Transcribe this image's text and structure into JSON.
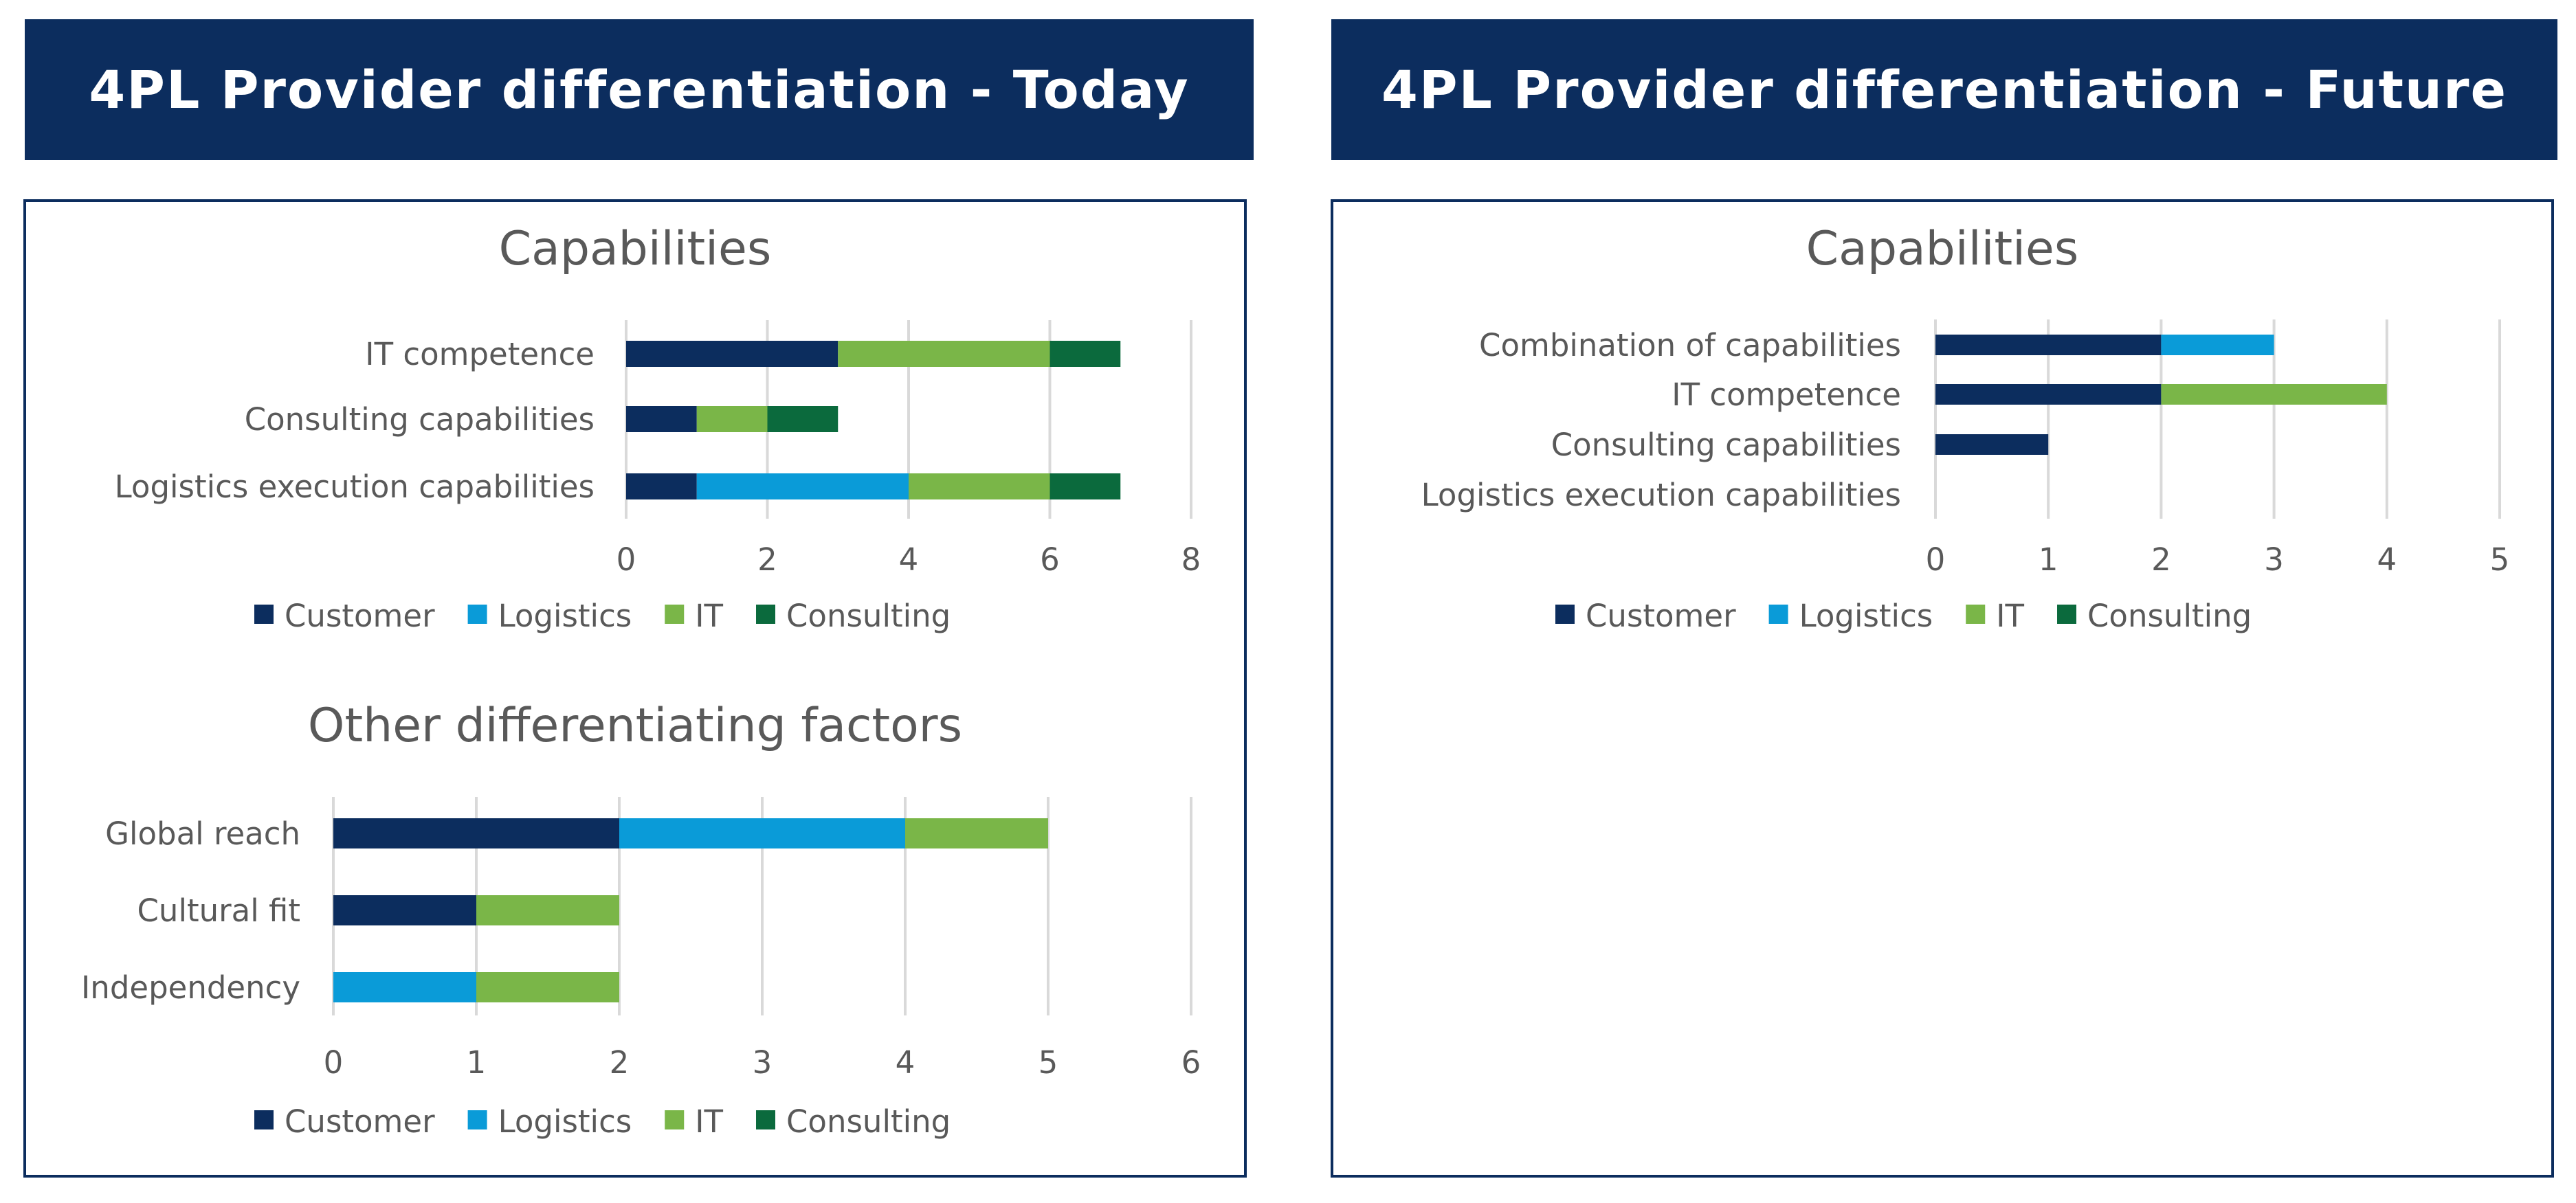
{
  "headers": {
    "today": "4PL Provider differentiation - Today",
    "future": "4PL Provider differentiation - Future"
  },
  "colors": {
    "header_bg": "#0c2d5e",
    "Customer": "#0c2d5e",
    "Logistics": "#0a9bd8",
    "IT": "#7ab648",
    "Consulting": "#0b6a3d",
    "grid": "#d9d9d9",
    "text": "#595959"
  },
  "chart_data": [
    {
      "id": "today_capabilities",
      "type": "bar",
      "orientation": "horizontal",
      "stacked": true,
      "title": "Capabilities",
      "categories": [
        "IT competence",
        "Consulting capabilities",
        "Logistics execution capabilities"
      ],
      "series": [
        {
          "name": "Customer",
          "values": [
            3,
            1,
            1
          ]
        },
        {
          "name": "Logistics",
          "values": [
            0,
            0,
            3
          ]
        },
        {
          "name": "IT",
          "values": [
            3,
            1,
            2
          ]
        },
        {
          "name": "Consulting",
          "values": [
            1,
            1,
            1
          ]
        }
      ],
      "xlim": [
        0,
        8
      ],
      "xticks": [
        0,
        2,
        4,
        6,
        8
      ],
      "legend": "bottom"
    },
    {
      "id": "today_other",
      "type": "bar",
      "orientation": "horizontal",
      "stacked": true,
      "title": "Other differentiating factors",
      "categories": [
        "Global reach",
        "Cultural fit",
        "Independency"
      ],
      "series": [
        {
          "name": "Customer",
          "values": [
            2,
            1,
            0
          ]
        },
        {
          "name": "Logistics",
          "values": [
            2,
            0,
            1
          ]
        },
        {
          "name": "IT",
          "values": [
            1,
            1,
            1
          ]
        },
        {
          "name": "Consulting",
          "values": [
            0,
            0,
            0
          ]
        }
      ],
      "xlim": [
        0,
        6
      ],
      "xticks": [
        0,
        1,
        2,
        3,
        4,
        5,
        6
      ],
      "legend": "bottom"
    },
    {
      "id": "future_capabilities",
      "type": "bar",
      "orientation": "horizontal",
      "stacked": true,
      "title": "Capabilities",
      "categories": [
        "Combination of capabilities",
        "IT competence",
        "Consulting capabilities",
        "Logistics execution capabilities"
      ],
      "series": [
        {
          "name": "Customer",
          "values": [
            2,
            2,
            1,
            0
          ]
        },
        {
          "name": "Logistics",
          "values": [
            1,
            0,
            0,
            0
          ]
        },
        {
          "name": "IT",
          "values": [
            0,
            2,
            0,
            0
          ]
        },
        {
          "name": "Consulting",
          "values": [
            0,
            0,
            0,
            0
          ]
        }
      ],
      "xlim": [
        0,
        5
      ],
      "xticks": [
        0,
        1,
        2,
        3,
        4,
        5
      ],
      "legend": "bottom"
    }
  ]
}
